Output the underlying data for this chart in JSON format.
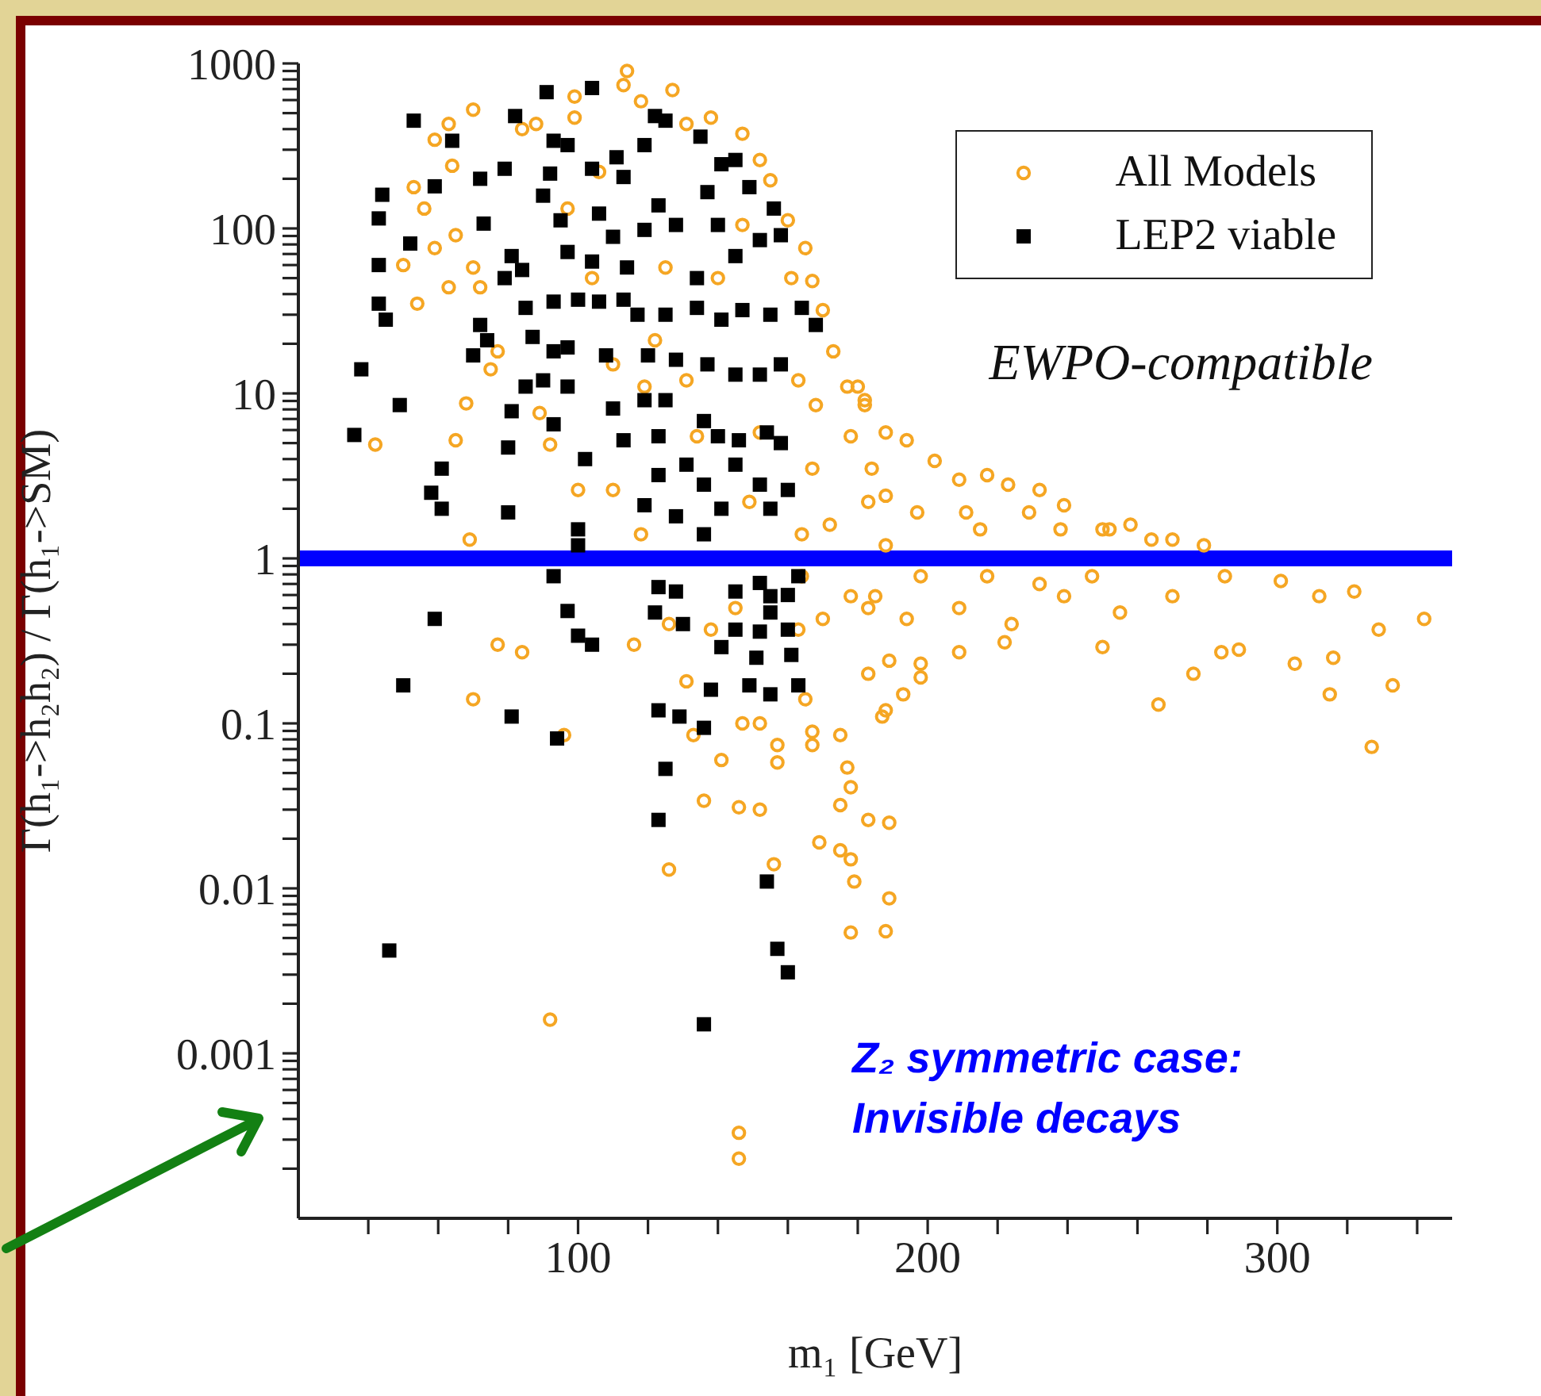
{
  "chart_data": {
    "type": "scatter",
    "xlabel": "m₁ [GeV]",
    "ylabel": "Γ(h₁->h₂h₂) / Γ(h₁->SM)",
    "log": "y",
    "legend": "top right",
    "xlim": [
      20,
      350
    ],
    "xticks": [
      {
        "value": 40,
        "label": null
      },
      {
        "value": 60,
        "label": null
      },
      {
        "value": 80,
        "label": null
      },
      100,
      {
        "value": 120,
        "label": null
      },
      {
        "value": 140,
        "label": null
      },
      {
        "value": 160,
        "label": null
      },
      {
        "value": 180,
        "label": null
      },
      200,
      {
        "value": 220,
        "label": null
      },
      {
        "value": 240,
        "label": null
      },
      {
        "value": 260,
        "label": null
      },
      {
        "value": 280,
        "label": null
      },
      300,
      {
        "value": 320,
        "label": null
      },
      {
        "value": 340,
        "label": null
      }
    ],
    "ylim": [
      0.0001,
      1000
    ],
    "yticks": [
      {
        "value": 0.0002,
        "label": null
      },
      {
        "value": 0.0003,
        "label": null
      },
      {
        "value": 0.0004,
        "label": null
      },
      {
        "value": 0.0005,
        "label": null
      },
      {
        "value": 0.0006,
        "label": null
      },
      {
        "value": 0.0007,
        "label": null
      },
      {
        "value": 0.0008,
        "label": null
      },
      {
        "value": 0.0009,
        "label": null
      },
      0.001,
      {
        "value": 0.002,
        "label": null
      },
      {
        "value": 0.003,
        "label": null
      },
      {
        "value": 0.004,
        "label": null
      },
      {
        "value": 0.005,
        "label": null
      },
      {
        "value": 0.006,
        "label": null
      },
      {
        "value": 0.007,
        "label": null
      },
      {
        "value": 0.008,
        "label": null
      },
      {
        "value": 0.009,
        "label": null
      },
      0.01,
      {
        "value": 0.02,
        "label": null
      },
      {
        "value": 0.03,
        "label": null
      },
      {
        "value": 0.04,
        "label": null
      },
      {
        "value": 0.05,
        "label": null
      },
      {
        "value": 0.06,
        "label": null
      },
      {
        "value": 0.07,
        "label": null
      },
      {
        "value": 0.08,
        "label": null
      },
      {
        "value": 0.09,
        "label": null
      },
      0.1,
      {
        "value": 0.2,
        "label": null
      },
      {
        "value": 0.3,
        "label": null
      },
      {
        "value": 0.4,
        "label": null
      },
      {
        "value": 0.5,
        "label": null
      },
      {
        "value": 0.6,
        "label": null
      },
      {
        "value": 0.7,
        "label": null
      },
      {
        "value": 0.8,
        "label": null
      },
      {
        "value": 0.9,
        "label": null
      },
      1,
      {
        "value": 2,
        "label": null
      },
      {
        "value": 3,
        "label": null
      },
      {
        "value": 4,
        "label": null
      },
      {
        "value": 5,
        "label": null
      },
      {
        "value": 6,
        "label": null
      },
      {
        "value": 7,
        "label": null
      },
      {
        "value": 8,
        "label": null
      },
      {
        "value": 9,
        "label": null
      },
      10,
      {
        "value": 20,
        "label": null
      },
      {
        "value": 30,
        "label": null
      },
      {
        "value": 40,
        "label": null
      },
      {
        "value": 50,
        "label": null
      },
      {
        "value": 60,
        "label": null
      },
      {
        "value": 70,
        "label": null
      },
      {
        "value": 80,
        "label": null
      },
      {
        "value": 90,
        "label": null
      },
      100,
      {
        "value": 200,
        "label": null
      },
      {
        "value": 300,
        "label": null
      },
      {
        "value": 400,
        "label": null
      },
      {
        "value": 500,
        "label": null
      },
      {
        "value": 600,
        "label": null
      },
      {
        "value": 700,
        "label": null
      },
      {
        "value": 800,
        "label": null
      },
      {
        "value": 900,
        "label": null
      },
      1000
    ],
    "ref_lines": [
      {
        "axis": "y",
        "value": 1,
        "color": "#0000ff"
      }
    ],
    "annotations": [
      "EWPO-compatible",
      "Z₂ symmetric case: Invisible decays"
    ],
    "series": [
      {
        "name": "All Models",
        "color": "#f5a623",
        "marker": "circle",
        "x": [
          70,
          96,
          131,
          133,
          141,
          147,
          152,
          157,
          157,
          136,
          146,
          152,
          126,
          156,
          92,
          146,
          146,
          165,
          167,
          167,
          175,
          177,
          178,
          175,
          169,
          175,
          178,
          179,
          178,
          183,
          183,
          187,
          188,
          189,
          189,
          188,
          193,
          189,
          198,
          198,
          209,
          222,
          250,
          266,
          276,
          284,
          289,
          305,
          315,
          316,
          333,
          327,
          258,
          270,
          264,
          250,
          239,
          232,
          223,
          217,
          209,
          202,
          194,
          188,
          182,
          180,
          279,
          301,
          312,
          322,
          329,
          342,
          285,
          270,
          255,
          239,
          224,
          209,
          194,
          185,
          198,
          217,
          232,
          247,
          215,
          197,
          229,
          252,
          188,
          211,
          238,
          188,
          70,
          59,
          63,
          53,
          56,
          64,
          59,
          50,
          65,
          70,
          63,
          54,
          72,
          77,
          75,
          68,
          42,
          65,
          69,
          89,
          92,
          84,
          88,
          99,
          99,
          113,
          114,
          127,
          118,
          131,
          138,
          147,
          152,
          155,
          160,
          165,
          167,
          170,
          173,
          177,
          182,
          178,
          184,
          183,
          172,
          164,
          167,
          168,
          163,
          106,
          97,
          104,
          125,
          122,
          110,
          119,
          131,
          134,
          110,
          100,
          118,
          152,
          149,
          164,
          170,
          178,
          183,
          116,
          126,
          145,
          138,
          163,
          77,
          84,
          140,
          147,
          161
        ],
        "values": [
          0.14,
          0.085,
          0.18,
          0.085,
          0.06,
          0.1,
          0.1,
          0.074,
          0.058,
          0.034,
          0.031,
          0.03,
          0.013,
          0.014,
          0.0016,
          0.00033,
          0.00023,
          0.14,
          0.089,
          0.074,
          0.085,
          0.054,
          0.041,
          0.032,
          0.019,
          0.017,
          0.015,
          0.011,
          0.0054,
          0.2,
          0.026,
          0.11,
          0.0055,
          0.0087,
          0.025,
          0.12,
          0.15,
          0.24,
          0.23,
          0.19,
          0.27,
          0.31,
          0.29,
          0.13,
          0.2,
          0.27,
          0.28,
          0.23,
          0.15,
          0.25,
          0.17,
          0.072,
          1.6,
          1.3,
          1.3,
          1.5,
          2.1,
          2.6,
          2.8,
          3.2,
          3,
          3.9,
          5.2,
          5.8,
          9.1,
          11,
          1.2,
          0.73,
          0.59,
          0.63,
          0.37,
          0.43,
          0.78,
          0.59,
          0.47,
          0.59,
          0.4,
          0.5,
          0.43,
          0.59,
          0.78,
          0.78,
          0.7,
          0.78,
          1.5,
          1.9,
          1.9,
          1.5,
          1.2,
          1.9,
          1.5,
          2.4,
          525,
          345,
          430,
          178,
          132,
          240,
          76,
          60,
          91,
          58,
          44,
          35,
          44,
          18,
          14,
          8.7,
          4.9,
          5.2,
          1.3,
          7.6,
          4.9,
          400,
          430,
          470,
          630,
          740,
          900,
          690,
          590,
          430,
          470,
          375,
          260,
          196,
          112,
          76,
          48,
          32,
          18,
          11,
          8.5,
          5.5,
          3.5,
          2.2,
          1.6,
          1.4,
          3.5,
          8.5,
          12,
          220,
          132,
          50,
          58,
          21,
          15,
          11,
          12,
          5.5,
          2.6,
          2.6,
          1.4,
          5.8,
          2.2,
          0.78,
          0.43,
          0.59,
          0.5,
          0.3,
          0.4,
          0.5,
          0.37,
          0.37,
          0.3,
          0.27,
          50,
          105,
          50
        ]
      },
      {
        "name": "LEP2 viable",
        "color": "#000000",
        "marker": "square",
        "x": [
          53,
          91,
          104,
          82,
          64,
          59,
          44,
          43,
          72,
          52,
          43,
          73,
          79,
          93,
          97,
          92,
          90,
          104,
          111,
          113,
          122,
          125,
          119,
          135,
          141,
          145,
          95,
          106,
          123,
          137,
          149,
          156,
          119,
          128,
          140,
          97,
          104,
          110,
          114,
          134,
          145,
          152,
          158,
          81,
          79,
          84,
          43,
          45,
          72,
          74,
          70,
          38,
          85,
          93,
          100,
          106,
          113,
          117,
          125,
          134,
          141,
          147,
          155,
          164,
          168,
          87,
          93,
          97,
          108,
          120,
          128,
          137,
          145,
          152,
          158,
          85,
          90,
          97,
          49,
          36,
          61,
          58,
          61,
          80,
          81,
          80,
          93,
          102,
          110,
          119,
          125,
          113,
          123,
          136,
          140,
          146,
          154,
          158,
          123,
          131,
          136,
          145,
          152,
          160,
          119,
          128,
          141,
          155,
          100,
          100,
          136,
          93,
          97,
          100,
          104,
          123,
          122,
          130,
          128,
          145,
          152,
          155,
          160,
          155,
          145,
          152,
          160,
          163,
          59,
          50,
          81,
          94,
          123,
          129,
          136,
          138,
          149,
          151,
          155,
          161,
          163,
          141,
          125,
          123,
          154,
          157,
          160,
          136,
          46
        ],
        "values": [
          450,
          670,
          710,
          480,
          340,
          180,
          160,
          115,
          200,
          81,
          60,
          107,
          230,
          340,
          320,
          215,
          158,
          230,
          270,
          205,
          480,
          450,
          320,
          360,
          245,
          260,
          112,
          123,
          138,
          166,
          178,
          132,
          98,
          105,
          105,
          72,
          63,
          89,
          58,
          50,
          68,
          85,
          91,
          68,
          50,
          56,
          35,
          28,
          26,
          21,
          17,
          14,
          33,
          36,
          37,
          36,
          37,
          30,
          30,
          33,
          28,
          32,
          30,
          33,
          26,
          22,
          18,
          19,
          17,
          17,
          16,
          15,
          13,
          13,
          15,
          11,
          12,
          11,
          8.5,
          5.6,
          3.5,
          2.5,
          2,
          4.7,
          7.8,
          1.9,
          6.5,
          4,
          8.1,
          9.1,
          9.1,
          5.2,
          5.5,
          6.8,
          5.5,
          5.2,
          5.8,
          5,
          3.2,
          3.7,
          2.8,
          3.7,
          2.8,
          2.6,
          2.1,
          1.8,
          2,
          2,
          1.5,
          1.2,
          1.4,
          0.78,
          0.48,
          0.34,
          0.3,
          0.67,
          0.47,
          0.4,
          0.63,
          0.63,
          0.71,
          0.59,
          0.6,
          0.47,
          0.37,
          0.36,
          0.37,
          0.78,
          0.43,
          0.17,
          0.11,
          0.081,
          0.12,
          0.11,
          0.094,
          0.16,
          0.17,
          0.25,
          0.15,
          0.26,
          0.17,
          0.29,
          0.053,
          0.026,
          0.011,
          0.0043,
          0.0031,
          0.0015,
          0.0042
        ]
      }
    ]
  }
}
